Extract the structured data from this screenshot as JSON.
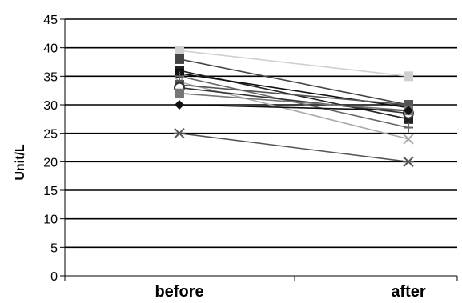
{
  "chart_data": {
    "type": "line",
    "title": "",
    "xlabel": "",
    "ylabel": "Unit/L",
    "categories": [
      "before",
      "after"
    ],
    "ylim": [
      0,
      45
    ],
    "yticks": [
      0,
      5,
      10,
      15,
      20,
      25,
      30,
      35,
      40,
      45
    ],
    "grid": true,
    "legend": "none",
    "series": [
      {
        "values": [
          39.5,
          35.0
        ],
        "color": "#d0d0d0",
        "marker": "square"
      },
      {
        "values": [
          38.0,
          30.0
        ],
        "color": "#444444",
        "marker": "square"
      },
      {
        "values": [
          36.0,
          27.5
        ],
        "color": "#222222",
        "marker": "square"
      },
      {
        "values": [
          35.5,
          29.5
        ],
        "color": "#111111",
        "marker": "square"
      },
      {
        "values": [
          35.0,
          26.0
        ],
        "color": "#666666",
        "marker": "plus"
      },
      {
        "values": [
          34.0,
          24.0
        ],
        "color": "#aaaaaa",
        "marker": "x"
      },
      {
        "values": [
          33.5,
          30.0
        ],
        "color": "#555555",
        "marker": "square"
      },
      {
        "values": [
          33.0,
          28.5
        ],
        "color": "#333333",
        "marker": "circle"
      },
      {
        "values": [
          32.0,
          29.0
        ],
        "color": "#777777",
        "marker": "square"
      },
      {
        "values": [
          30.0,
          29.0
        ],
        "color": "#111111",
        "marker": "diamond"
      },
      {
        "values": [
          25.0,
          20.0
        ],
        "color": "#555555",
        "marker": "star"
      }
    ]
  }
}
